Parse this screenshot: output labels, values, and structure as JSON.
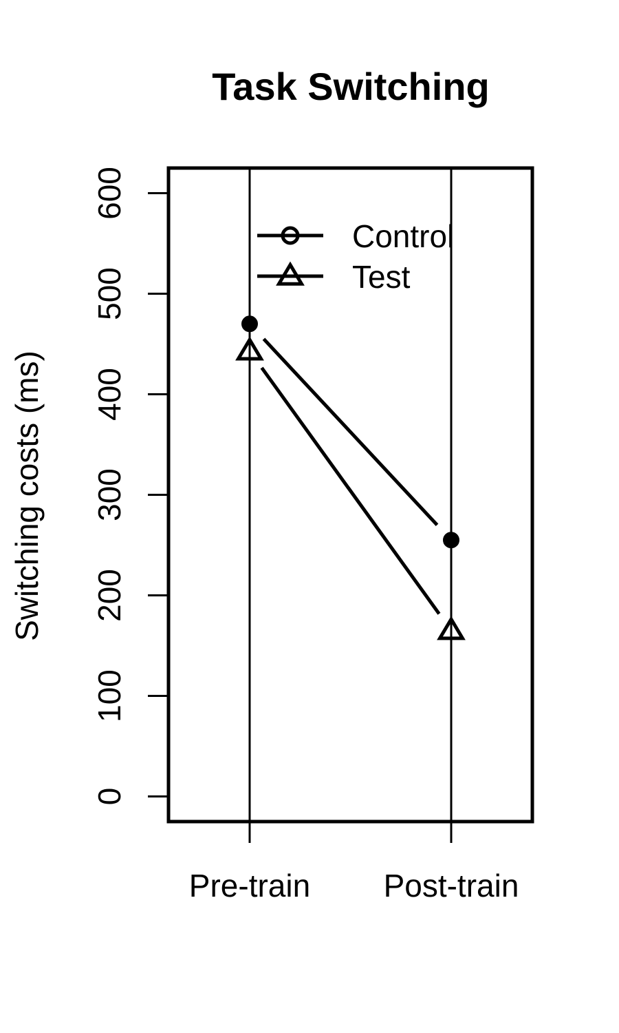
{
  "chart_data": {
    "type": "line",
    "title": "Task Switching",
    "xlabel": "",
    "ylabel": "Switching costs (ms)",
    "categories": [
      "Pre-train",
      "Post-train"
    ],
    "ylim": [
      -25,
      625
    ],
    "yticks": [
      0,
      100,
      200,
      300,
      400,
      500,
      600
    ],
    "grid": false,
    "legend_position": "top",
    "series": [
      {
        "name": "Control",
        "marker": "filled-circle",
        "legend_marker": "open-circle",
        "values": [
          470,
          255
        ]
      },
      {
        "name": "Test",
        "marker": "open-triangle",
        "legend_marker": "open-triangle",
        "values": [
          443,
          165
        ]
      }
    ],
    "line_color": "#000000"
  }
}
